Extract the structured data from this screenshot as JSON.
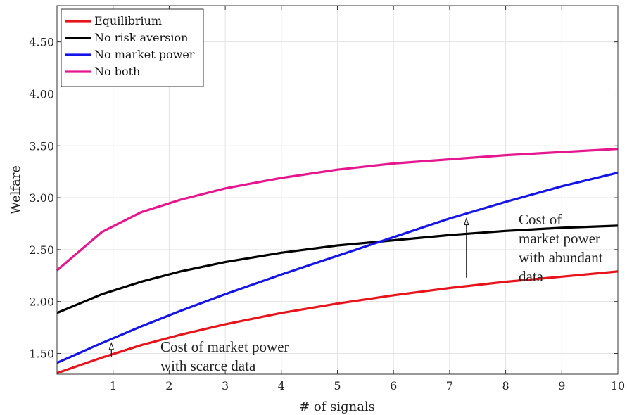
{
  "chart_data": {
    "type": "line",
    "title": "",
    "xlabel": "# of signals",
    "ylabel": "Welfare",
    "xlim": [
      0,
      10
    ],
    "ylim": [
      1.3,
      4.85
    ],
    "x_ticks": [
      1,
      2,
      3,
      4,
      5,
      6,
      7,
      8,
      9,
      10
    ],
    "x_tick_labels": [
      "1",
      "2",
      "3",
      "4",
      "5",
      "6",
      "7",
      "8",
      "9",
      "10"
    ],
    "y_ticks": [
      1.5,
      2.0,
      2.5,
      3.0,
      3.5,
      4.0,
      4.5
    ],
    "y_tick_labels": [
      "1.50",
      "2.00",
      "2.50",
      "3.00",
      "3.50",
      "4.00",
      "4.50"
    ],
    "grid": true,
    "legend_position": "top-left",
    "x": [
      0,
      0.8,
      1.5,
      2.2,
      3.0,
      4.0,
      5.0,
      6.0,
      7.0,
      8.0,
      9.0,
      10.0
    ],
    "series": [
      {
        "name": "Equilibrium",
        "color": "#e8141b",
        "values": [
          1.31,
          1.46,
          1.58,
          1.68,
          1.78,
          1.89,
          1.98,
          2.06,
          2.13,
          2.19,
          2.24,
          2.29
        ]
      },
      {
        "name": "No risk aversion",
        "color": "#000000",
        "values": [
          1.89,
          2.07,
          2.19,
          2.29,
          2.38,
          2.47,
          2.54,
          2.59,
          2.64,
          2.68,
          2.71,
          2.73
        ]
      },
      {
        "name": "No market power",
        "color": "#1414e6",
        "values": [
          1.41,
          1.6,
          1.76,
          1.91,
          2.07,
          2.26,
          2.44,
          2.62,
          2.8,
          2.96,
          3.11,
          3.24
        ]
      },
      {
        "name": "No both",
        "color": "#e6168f",
        "values": [
          2.3,
          2.67,
          2.86,
          2.98,
          3.09,
          3.19,
          3.27,
          3.33,
          3.37,
          3.41,
          3.44,
          3.47
        ]
      }
    ],
    "annotations": [
      {
        "lines": [
          "Cost of market power",
          "with scarce data"
        ],
        "arrow_x": 0.97,
        "arrow_from": 1.47,
        "arrow_to": 1.6
      },
      {
        "lines": [
          "Cost of",
          "market power",
          "with abundant",
          "data"
        ],
        "arrow_x": 7.3,
        "arrow_from": 2.23,
        "arrow_to": 2.8
      }
    ]
  }
}
